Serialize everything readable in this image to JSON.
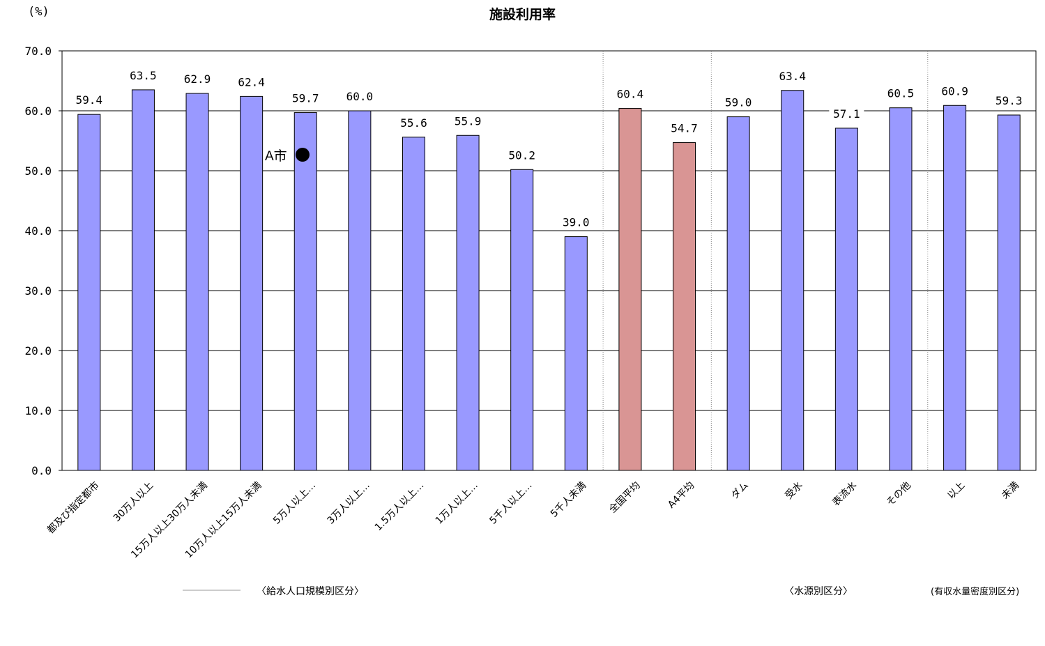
{
  "unit_label": "(%)",
  "chart_data": {
    "type": "bar",
    "title": "施設利用率",
    "xlabel": "",
    "ylabel": "(%)",
    "ylim": [
      0,
      70
    ],
    "yticks": [
      "0.0",
      "10.0",
      "20.0",
      "30.0",
      "40.0",
      "50.0",
      "60.0",
      "70.0"
    ],
    "grid": true,
    "categories": [
      "都及び指定都市",
      "30万人以上",
      "15万人以上30万人未満",
      "10万人以上15万人未満",
      "5万人以上…",
      "3万人以上…",
      "1.5万人以上…",
      "1万人以上…",
      "5千人以上…",
      "5千人未満",
      "全国平均",
      "A4平均",
      "ダム",
      "受水",
      "表流水",
      "その他",
      "以上",
      "未満"
    ],
    "value_labels": [
      "59.4",
      "63.5",
      "62.9",
      "62.4",
      "59.7",
      "60.0",
      "55.6",
      "55.9",
      "50.2",
      "39.0",
      "60.4",
      "54.7",
      "59.0",
      "63.4",
      "57.1",
      "60.5",
      "60.9",
      "59.3"
    ],
    "values": [
      59.4,
      63.5,
      62.9,
      62.4,
      59.7,
      60.0,
      55.6,
      55.9,
      50.2,
      39.0,
      60.4,
      54.7,
      59.0,
      63.4,
      57.1,
      60.5,
      60.9,
      59.3
    ],
    "colors": [
      "#9999ff",
      "#9999ff",
      "#9999ff",
      "#9999ff",
      "#9999ff",
      "#9999ff",
      "#9999ff",
      "#9999ff",
      "#9999ff",
      "#9999ff",
      "#d99594",
      "#d99594",
      "#9999ff",
      "#9999ff",
      "#9999ff",
      "#9999ff",
      "#9999ff",
      "#9999ff"
    ],
    "annotation": {
      "text": "A市",
      "category": "5万人以上…",
      "value": 53.0
    },
    "groups": [
      {
        "label": "〈給水人口規模別区分〉"
      },
      {
        "label": "〈水源別区分〉"
      },
      {
        "label": "(有収水量密度別区分)"
      }
    ]
  }
}
